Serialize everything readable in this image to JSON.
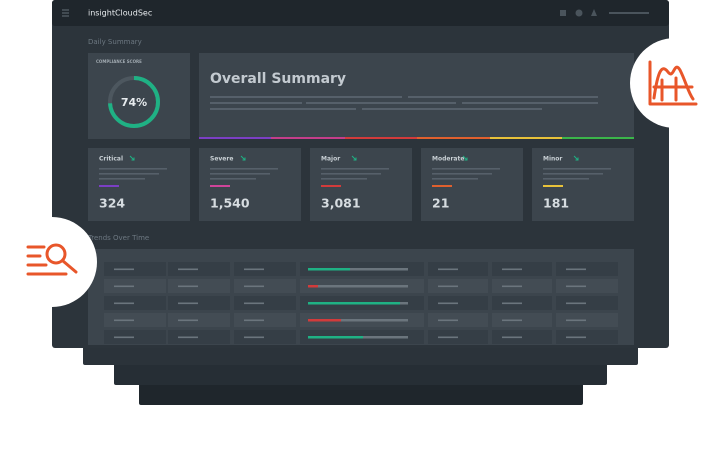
{
  "header": {
    "brand": "insightCloudSec"
  },
  "daily_summary": {
    "title": "Daily Summary",
    "compliance": {
      "label": "COMPLIANCE SCORE",
      "score": {
        "value": 74,
        "label": "74%"
      }
    },
    "overall": {
      "title": "Overall Summary"
    },
    "severities": [
      {
        "name": "Critical",
        "count": "324"
      },
      {
        "name": "Severe",
        "count": "1,540"
      },
      {
        "name": "Major",
        "count": "3,081"
      },
      {
        "name": "Moderate",
        "count": "21"
      },
      {
        "name": "Minor",
        "count": "181"
      }
    ]
  },
  "trends": {
    "title": "Trends Over Time"
  }
}
